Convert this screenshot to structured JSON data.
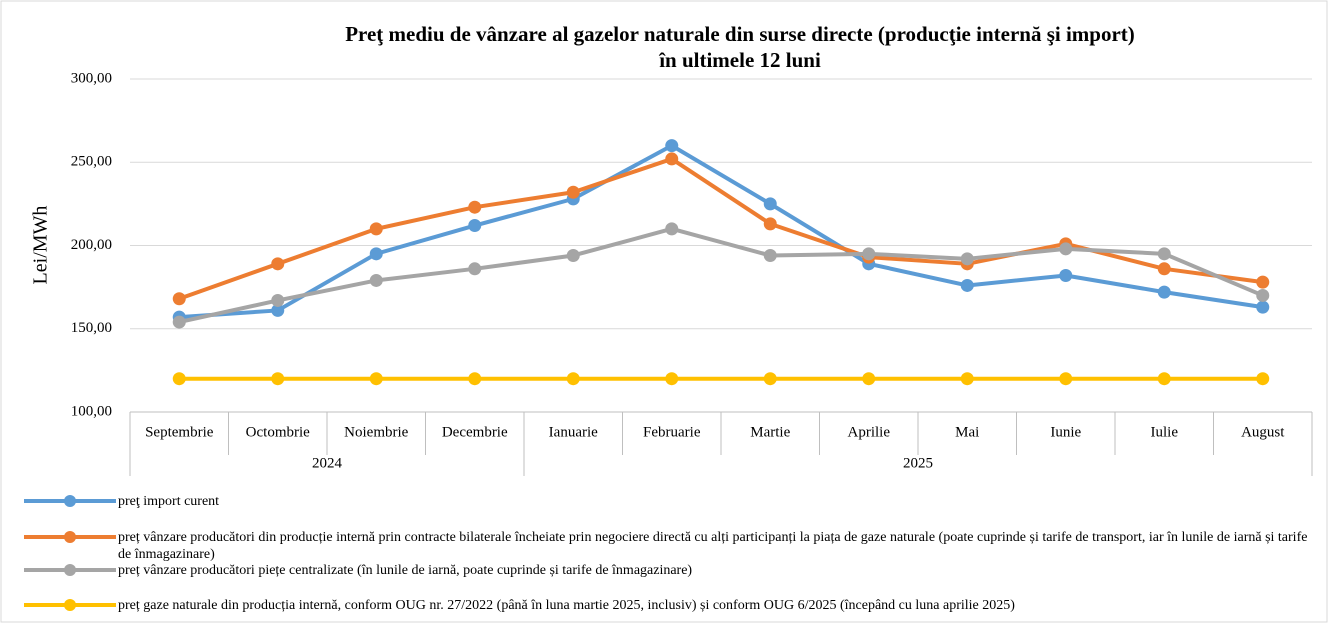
{
  "chart_data": {
    "type": "line",
    "title": [
      "Preţ  mediu de vânzare al gazelor naturale din surse directe (producţie internă şi import)",
      "în ultimele 12 luni"
    ],
    "y_label": "Lei/MWh",
    "categories": [
      "Septembrie",
      "Octombrie",
      "Noiembrie",
      "Decembrie",
      "Ianuarie",
      "Februarie",
      "Martie",
      "Aprilie",
      "Mai",
      "Iunie",
      "Iulie",
      "August"
    ],
    "year_groups": [
      {
        "label": "2024",
        "count": 4
      },
      {
        "label": "2025",
        "count": 8
      }
    ],
    "ylim": [
      100,
      300
    ],
    "yticks": [
      {
        "value": 100,
        "label": "100,00"
      },
      {
        "value": 150,
        "label": "150,00"
      },
      {
        "value": 200,
        "label": "200,00"
      },
      {
        "value": 250,
        "label": "250,00"
      },
      {
        "value": 300,
        "label": "300,00"
      }
    ],
    "grid": true,
    "series": [
      {
        "name": "preţ import curent",
        "color": "#5b9bd5",
        "values": [
          157,
          161,
          195,
          212,
          228,
          260,
          225,
          189,
          176,
          182,
          172,
          163
        ]
      },
      {
        "name": "preț vânzare producători din producție internă prin contracte bilaterale încheiate  prin negociere directă cu alți participanți la piața de gaze naturale (poate cuprinde și tarife de transport, iar în lunile de iarnă și tarife de înmagazinare)",
        "color": "#ed7d31",
        "values": [
          168,
          189,
          210,
          223,
          232,
          252,
          213,
          193,
          189,
          201,
          186,
          178
        ]
      },
      {
        "name": "preț vânzare producători piețe centralizate (în lunile de iarnă, poate cuprinde și tarife de înmagazinare)",
        "color": "#a5a5a5",
        "values": [
          154,
          167,
          179,
          186,
          194,
          210,
          194,
          195,
          192,
          198,
          195,
          170
        ]
      },
      {
        "name": "preț gaze naturale din producția internă, conform OUG nr. 27/2022 (până în luna martie 2025, inclusiv) și conform OUG 6/2025 (începând cu luna aprilie 2025)",
        "color": "#ffc000",
        "values": [
          120,
          120,
          120,
          120,
          120,
          120,
          120,
          120,
          120,
          120,
          120,
          120
        ]
      }
    ]
  }
}
